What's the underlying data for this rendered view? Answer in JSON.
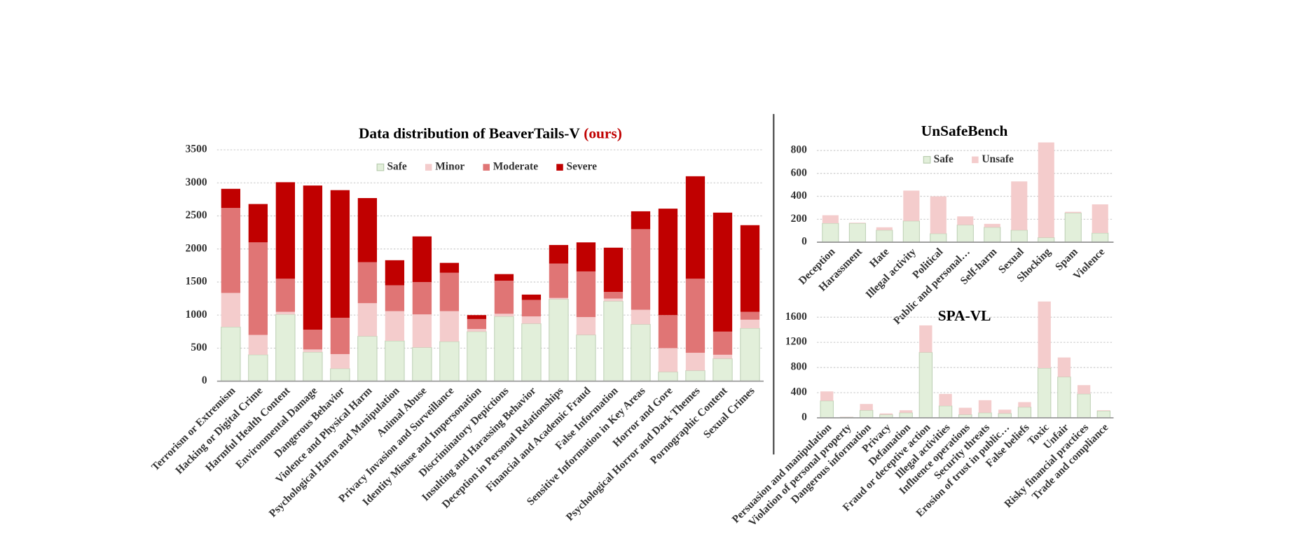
{
  "chart_data": [
    {
      "type": "bar",
      "stacked": true,
      "title": "Data distribution of BeaverTails-V",
      "title_highlight": "(ours)",
      "title_highlight_color": "#c00000",
      "categories": [
        "Terrorism or Extremism",
        "Hacking or Digital Crime",
        "Harmful Health Content",
        "Environmental Damage",
        "Dangerous Behavior",
        "Violence and Physical Harm",
        "Psychological Harm and Manipulation",
        "Animal Abuse",
        "Privacy Invasion and Surveillance",
        "Identity Misuse and Impersonation",
        "Discriminatory Depictions",
        "Insulting and Harassing Behavior",
        "Deception in Personal Relationships",
        "Financial and Academic Fraud",
        "False Information",
        "Sensitive Information in Key Areas",
        "Horror and Gore",
        "Psychological Horror and Dark Themes",
        "Pornographic Content",
        "Sexual Crimes"
      ],
      "series": [
        {
          "name": "Safe",
          "color": "#e2efda",
          "values": [
            820,
            400,
            1010,
            440,
            190,
            680,
            610,
            510,
            600,
            750,
            980,
            870,
            1240,
            700,
            1210,
            860,
            140,
            160,
            340,
            800
          ]
        },
        {
          "name": "Minor",
          "color": "#f4cccc",
          "values": [
            515,
            300,
            40,
            40,
            220,
            500,
            450,
            500,
            460,
            40,
            40,
            110,
            20,
            270,
            40,
            220,
            360,
            270,
            60,
            130
          ]
        },
        {
          "name": "Moderate",
          "color": "#e07575",
          "values": [
            1285,
            1400,
            500,
            300,
            550,
            620,
            390,
            490,
            580,
            150,
            500,
            250,
            520,
            690,
            100,
            1220,
            500,
            1120,
            350,
            120
          ]
        },
        {
          "name": "Severe",
          "color": "#c00000",
          "values": [
            290,
            580,
            1460,
            2180,
            1930,
            970,
            380,
            690,
            150,
            60,
            100,
            80,
            280,
            440,
            670,
            270,
            1610,
            1550,
            1800,
            1310
          ]
        }
      ],
      "ylim": [
        0,
        3500
      ],
      "yticks": [
        0,
        500,
        1000,
        1500,
        2000,
        2500,
        3000,
        3500
      ],
      "grid": true
    },
    {
      "type": "bar",
      "stacked": true,
      "title": "UnSafeBench",
      "categories": [
        "Deception",
        "Harassment",
        "Hate",
        "Illegal activity",
        "Political",
        "Public and personal…",
        "Self-harm",
        "Sexual",
        "Shocking",
        "Spam",
        "Violence"
      ],
      "series": [
        {
          "name": "Safe",
          "color": "#e2efda",
          "values": [
            165,
            165,
            105,
            185,
            75,
            150,
            130,
            105,
            40,
            255,
            80
          ]
        },
        {
          "name": "Unsafe",
          "color": "#f4cccc",
          "values": [
            70,
            5,
            25,
            265,
            325,
            75,
            30,
            425,
            830,
            10,
            250
          ]
        }
      ],
      "ylim": [
        0,
        900
      ],
      "yticks": [
        0,
        200,
        400,
        600,
        800
      ],
      "grid": true
    },
    {
      "type": "bar",
      "stacked": true,
      "title": "SPA-VL",
      "categories": [
        "Persuasion and manipulation",
        "Violation of personal property",
        "Dangerous information",
        "Privacy",
        "Defamation",
        "Fraud or deceptive action",
        "Illegal activities",
        "Influence operations",
        "Security threats",
        "Erosion of trust in public…",
        "False beliefs",
        "Toxic",
        "Unfair",
        "Risky financial practices",
        "Trade and compliance"
      ],
      "series": [
        {
          "name": "Safe",
          "color": "#e2efda",
          "values": [
            270,
            10,
            120,
            50,
            80,
            1040,
            190,
            50,
            80,
            70,
            170,
            790,
            650,
            380,
            110
          ]
        },
        {
          "name": "Unsafe",
          "color": "#f4cccc",
          "values": [
            150,
            5,
            100,
            20,
            40,
            430,
            190,
            110,
            200,
            60,
            80,
            1060,
            310,
            140,
            10
          ]
        }
      ],
      "ylim": [
        0,
        1800
      ],
      "yticks": [
        0,
        400,
        800,
        1200,
        1600
      ],
      "grid": true
    }
  ]
}
